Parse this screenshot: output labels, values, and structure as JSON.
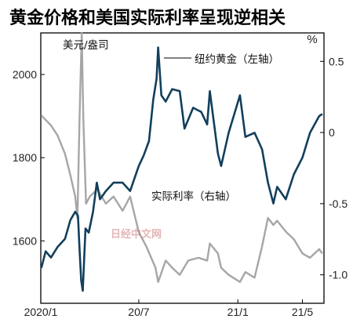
{
  "chart_data": {
    "type": "line",
    "title": "黄金价格和美国实际利率呈现逆相关",
    "right_axis_unit": "%",
    "x_tick_labels": [
      "2020/1",
      "20/7",
      "21/1",
      "21/5"
    ],
    "x_range": [
      "2020-01-01",
      "2021-06-10"
    ],
    "y_left_ticks": [
      1600,
      1800,
      2000
    ],
    "y_left_range": [
      1450,
      2100
    ],
    "y_right_ticks": [
      "0.5",
      "0",
      "-0.5",
      "-1.0"
    ],
    "y_right_range": [
      -1.2,
      0.7
    ],
    "annotations": {
      "gold": "纽约黄金（左轴）",
      "real_rate": "实际利率（右轴）",
      "usd_label": "美元/盎司"
    },
    "watermark": "日经中文网",
    "colors": {
      "gold": "#123f5c",
      "real_rate": "#a6a6a6"
    },
    "series": [
      {
        "name": "纽约黄金（左轴）",
        "axis": "left",
        "x": [
          "2020-01-02",
          "2020-01-10",
          "2020-01-20",
          "2020-02-01",
          "2020-02-15",
          "2020-02-25",
          "2020-03-05",
          "2020-03-10",
          "2020-03-13",
          "2020-03-16",
          "2020-03-19",
          "2020-03-24",
          "2020-03-30",
          "2020-04-07",
          "2020-04-14",
          "2020-04-20",
          "2020-05-01",
          "2020-05-15",
          "2020-06-01",
          "2020-06-15",
          "2020-07-01",
          "2020-07-10",
          "2020-07-20",
          "2020-07-28",
          "2020-08-03",
          "2020-08-06",
          "2020-08-12",
          "2020-08-20",
          "2020-09-01",
          "2020-09-15",
          "2020-09-24",
          "2020-10-10",
          "2020-10-25",
          "2020-11-05",
          "2020-11-10",
          "2020-11-25",
          "2020-12-01",
          "2020-12-15",
          "2021-01-05",
          "2021-01-15",
          "2021-02-01",
          "2021-02-15",
          "2021-02-26",
          "2021-03-08",
          "2021-03-15",
          "2021-03-31",
          "2021-04-15",
          "2021-05-01",
          "2021-05-15",
          "2021-06-01",
          "2021-06-07"
        ],
        "y": [
          1535,
          1575,
          1560,
          1585,
          1605,
          1650,
          1670,
          1660,
          1580,
          1505,
          1480,
          1630,
          1620,
          1670,
          1740,
          1700,
          1720,
          1740,
          1740,
          1720,
          1780,
          1805,
          1840,
          1940,
          1990,
          2065,
          1950,
          1935,
          1965,
          1960,
          1870,
          1920,
          1910,
          1880,
          1960,
          1810,
          1780,
          1860,
          1950,
          1850,
          1860,
          1820,
          1740,
          1690,
          1730,
          1700,
          1760,
          1800,
          1860,
          1900,
          1905
        ]
      },
      {
        "name": "实际利率（右轴）",
        "axis": "right",
        "x": [
          "2020-01-02",
          "2020-01-20",
          "2020-02-01",
          "2020-02-15",
          "2020-02-25",
          "2020-03-05",
          "2020-03-09",
          "2020-03-13",
          "2020-03-17",
          "2020-03-20",
          "2020-03-25",
          "2020-04-01",
          "2020-04-15",
          "2020-05-01",
          "2020-05-15",
          "2020-06-01",
          "2020-06-15",
          "2020-07-01",
          "2020-07-15",
          "2020-08-01",
          "2020-08-06",
          "2020-08-20",
          "2020-09-01",
          "2020-09-15",
          "2020-10-01",
          "2020-10-20",
          "2020-11-05",
          "2020-11-10",
          "2020-11-25",
          "2020-12-01",
          "2020-12-15",
          "2021-01-05",
          "2021-01-15",
          "2021-02-01",
          "2021-02-15",
          "2021-02-26",
          "2021-03-08",
          "2021-03-15",
          "2021-04-01",
          "2021-04-15",
          "2021-05-01",
          "2021-05-15",
          "2021-06-01",
          "2021-06-07"
        ],
        "y": [
          0.12,
          0.05,
          -0.02,
          -0.15,
          -0.3,
          -0.45,
          -0.6,
          0.1,
          0.7,
          0.1,
          -0.5,
          -0.45,
          -0.4,
          -0.5,
          -0.45,
          -0.55,
          -0.45,
          -0.7,
          -0.8,
          -0.95,
          -1.05,
          -0.9,
          -0.95,
          -1.0,
          -0.9,
          -0.88,
          -0.9,
          -0.78,
          -0.85,
          -0.95,
          -1.0,
          -1.05,
          -0.98,
          -1.02,
          -0.8,
          -0.6,
          -0.65,
          -0.62,
          -0.7,
          -0.75,
          -0.85,
          -0.88,
          -0.82,
          -0.85
        ]
      }
    ]
  }
}
